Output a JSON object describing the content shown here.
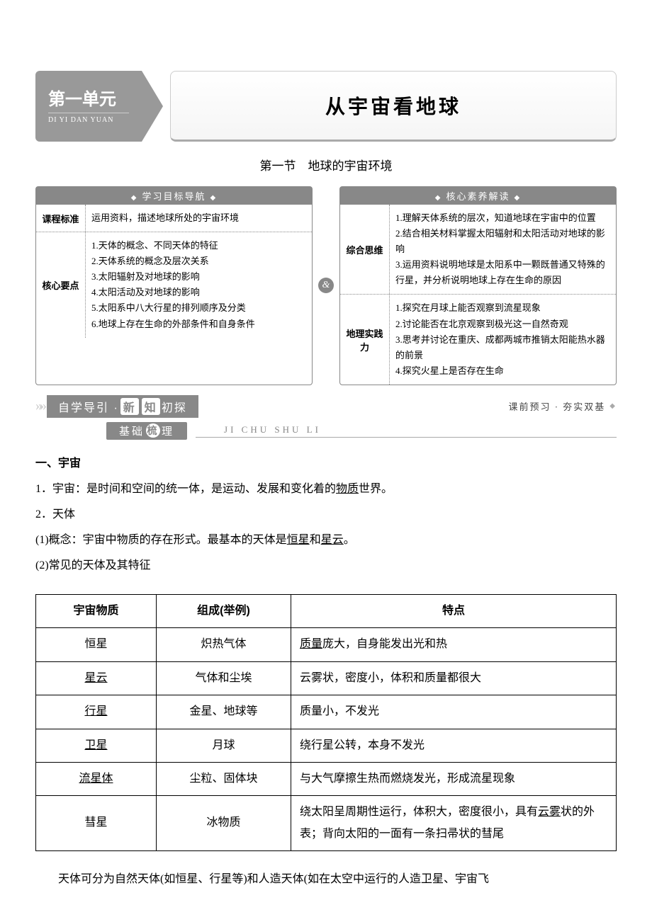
{
  "unit": {
    "badge_title": "第一单元",
    "badge_pinyin": "DI YI DAN YUAN",
    "title": "从宇宙看地球"
  },
  "section_title": "第一节　地球的宇宙环境",
  "left_box": {
    "header": "学习目标导航",
    "rows": [
      {
        "label": "课程标准",
        "content": "运用资料，描述地球所处的宇宙环境"
      },
      {
        "label": "核心要点",
        "content": "1.天体的概念、不同天体的特征\n2.天体系统的概念及层次关系\n3.太阳辐射及对地球的影响\n4.太阳活动及对地球的影响\n5.太阳系中八大行星的排列顺序及分类\n6.地球上存在生命的外部条件和自身条件"
      }
    ]
  },
  "right_box": {
    "header": "核心素养解读",
    "rows": [
      {
        "label": "综合思维",
        "content": "1.理解天体系统的层次，知道地球在宇宙中的位置\n2.结合相关材料掌握太阳辐射和太阳活动对地球的影响\n3.运用资料说明地球是太阳系中一颗既普通又特殊的行星，并分析说明地球上存在生命的原因"
      },
      {
        "label": "地理实践力",
        "content": "1.探究在月球上能否观察到流星现象\n2.讨论能否在北京观察到极光这一自然奇观\n3.思考并讨论在重庆、成都两城市推销太阳能热水器的前景\n4.探究火星上是否存在生命"
      }
    ]
  },
  "ribbon1": {
    "a": "自学导引 · ",
    "b1": "新",
    "b2": "知",
    "c1": "初",
    "c2": "探"
  },
  "ribbon1_right": "课前预习 · 夯实双基",
  "ribbon2": {
    "a": "基础",
    "b": "梳",
    "c": "理"
  },
  "ribbon2_pinyin": "JI CHU SHU LI",
  "body": {
    "h1": "一、宇宙",
    "p1a": "1．宇宙：",
    "p1b": "是时间和空间的统一体，是运动、发展和变化着的",
    "p1u": "物质",
    "p1c": "世界。",
    "p2": "2．天体",
    "p3a": "(1)概念：宇宙中物质的存在形式。最基本的天体是",
    "p3u1": "恒星",
    "p3m": "和",
    "p3u2": "星云",
    "p3c": "。",
    "p4": "(2)常见的天体及其特征"
  },
  "table": {
    "headers": [
      "宇宙物质",
      "组成(举例)",
      "特点"
    ],
    "rows": [
      {
        "c1": "恒星",
        "c1u": false,
        "c2": "炽热气体",
        "c3pre": "",
        "c3u": "质量",
        "c3post": "庞大，自身能发出光和热"
      },
      {
        "c1": "星云",
        "c1u": true,
        "c2": "气体和尘埃",
        "c3pre": "云雾状，密度小，体积和质量都很大",
        "c3u": "",
        "c3post": ""
      },
      {
        "c1": "行星",
        "c1u": true,
        "c2": "金星、地球等",
        "c3pre": "质量小，不发光",
        "c3u": "",
        "c3post": ""
      },
      {
        "c1": "卫星",
        "c1u": true,
        "c2": "月球",
        "c3pre": "绕行星公转，本身不发光",
        "c3u": "",
        "c3post": ""
      },
      {
        "c1": "流星体",
        "c1u": true,
        "c2": "尘粒、固体块",
        "c3pre": "与大气摩擦生热而燃烧发光，形成流星现象",
        "c3u": "",
        "c3post": ""
      },
      {
        "c1": "彗星",
        "c1u": false,
        "c2": "冰物质",
        "c3pre": "绕太阳呈周期性运行，体积大，密度很小，具有",
        "c3u": "云雾",
        "c3post": "状的外表；背向太阳的一面有一条扫帚状的彗尾"
      }
    ]
  },
  "footnote": "天体可分为自然天体(如恒星、行星等)和人造天体(如在太空中运行的人造卫星、宇宙飞"
}
